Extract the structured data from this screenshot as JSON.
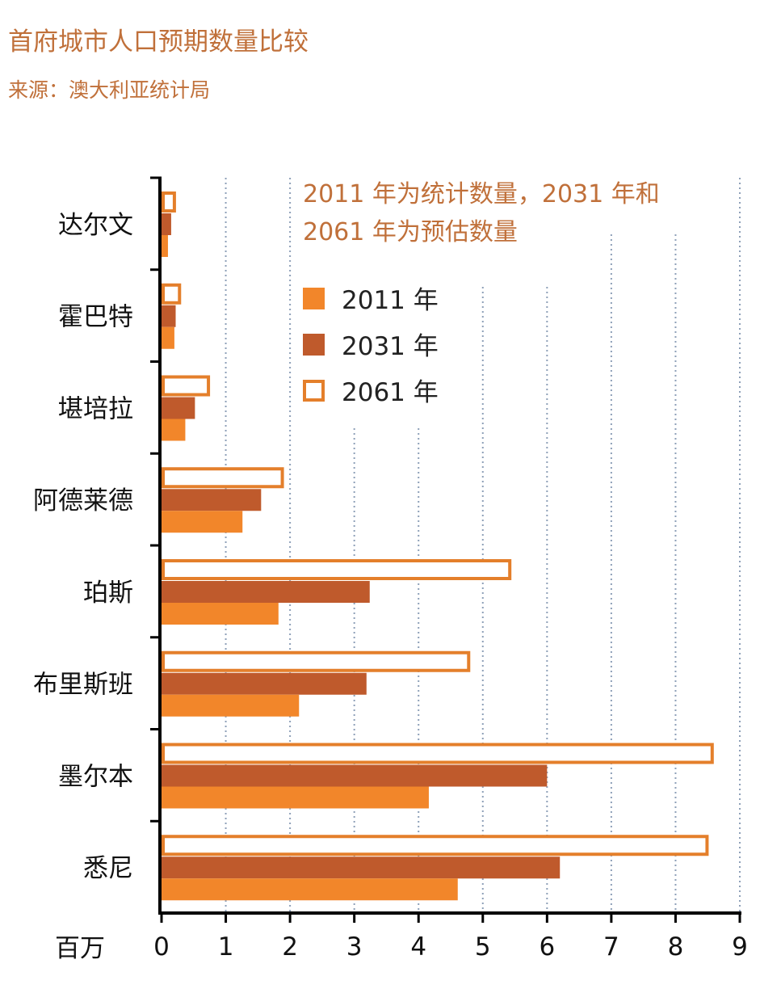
{
  "title": "首府城市人口预期数量比较",
  "subtitle": "来源：澳大利亚统计局",
  "chart_data": {
    "type": "bar",
    "orientation": "horizontal",
    "title": "首府城市人口预期数量比较",
    "subtitle": "来源：澳大利亚统计局",
    "annotation": [
      "2011 年为统计数量，2031 年和",
      "2061 年为预估数量"
    ],
    "xlabel": "百万",
    "ylabel": "",
    "xlim": [
      0,
      9
    ],
    "xticks": [
      "0",
      "1",
      "2",
      "3",
      "4",
      "5",
      "6",
      "7",
      "8",
      "9"
    ],
    "categories": [
      "达尔文",
      "霍巴特",
      "堪培拉",
      "阿德莱德",
      "珀斯",
      "布里斯班",
      "墨尔本",
      "悉尼"
    ],
    "series": [
      {
        "name": "2011 年",
        "color": "#f2862a",
        "style": "filled",
        "values": [
          0.1,
          0.2,
          0.37,
          1.26,
          1.82,
          2.14,
          4.16,
          4.61
        ]
      },
      {
        "name": "2031 年",
        "color": "#bf5a2c",
        "style": "filled",
        "values": [
          0.15,
          0.22,
          0.52,
          1.55,
          3.24,
          3.19,
          6.0,
          6.2
        ]
      },
      {
        "name": "2061 年",
        "color": "#e47f2b",
        "style": "outline",
        "values": [
          0.2,
          0.28,
          0.73,
          1.88,
          5.42,
          4.78,
          8.57,
          8.49
        ]
      }
    ],
    "grid": "vertical dotted",
    "legend": "top-center"
  }
}
